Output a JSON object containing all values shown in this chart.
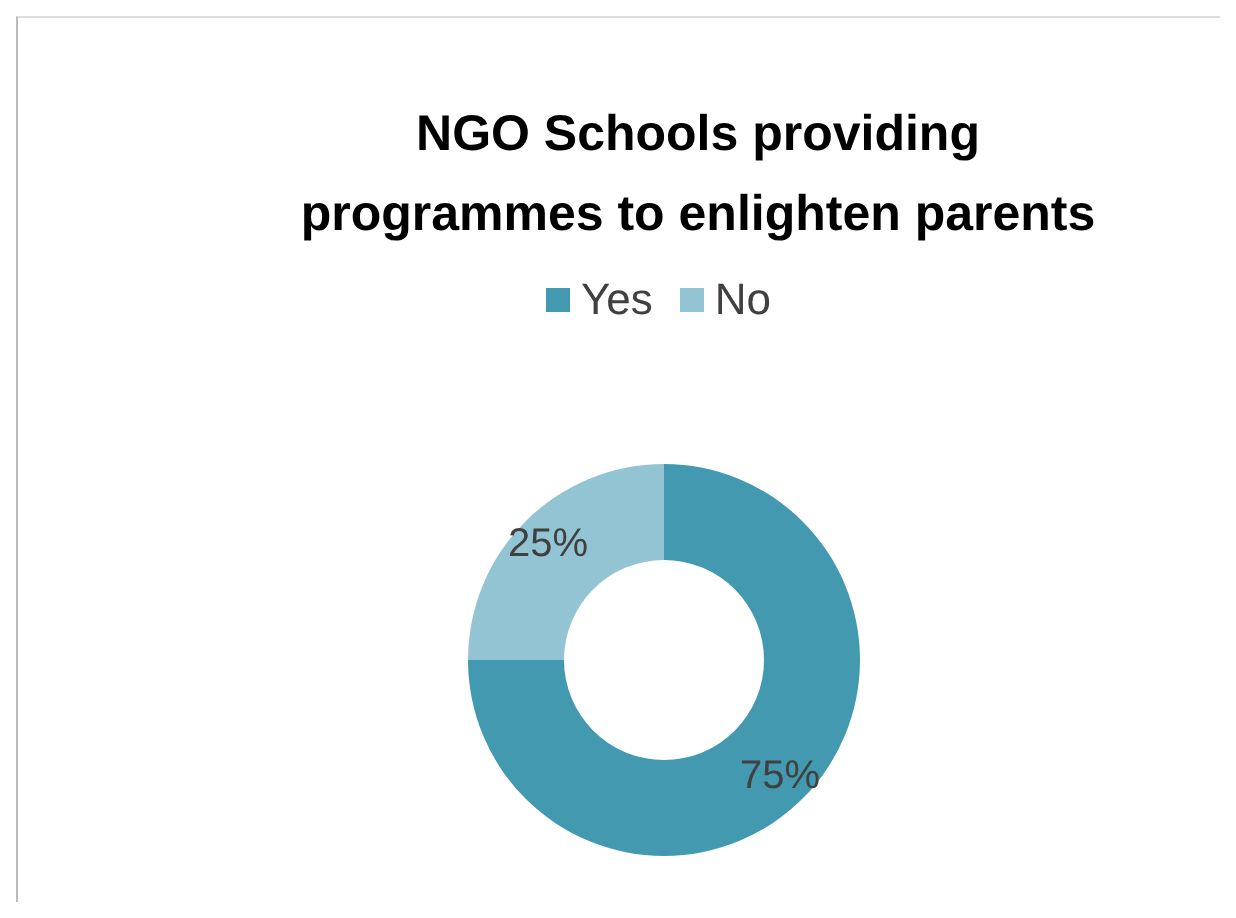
{
  "chart_data": {
    "type": "donut",
    "title": "NGO Schools providing programmes to enlighten parents",
    "categories": [
      "Yes",
      "No"
    ],
    "values": [
      75,
      25
    ],
    "colors": [
      "#4299b0",
      "#93c4d4"
    ],
    "value_labels": [
      "75%",
      "25%"
    ],
    "legend": "top"
  }
}
